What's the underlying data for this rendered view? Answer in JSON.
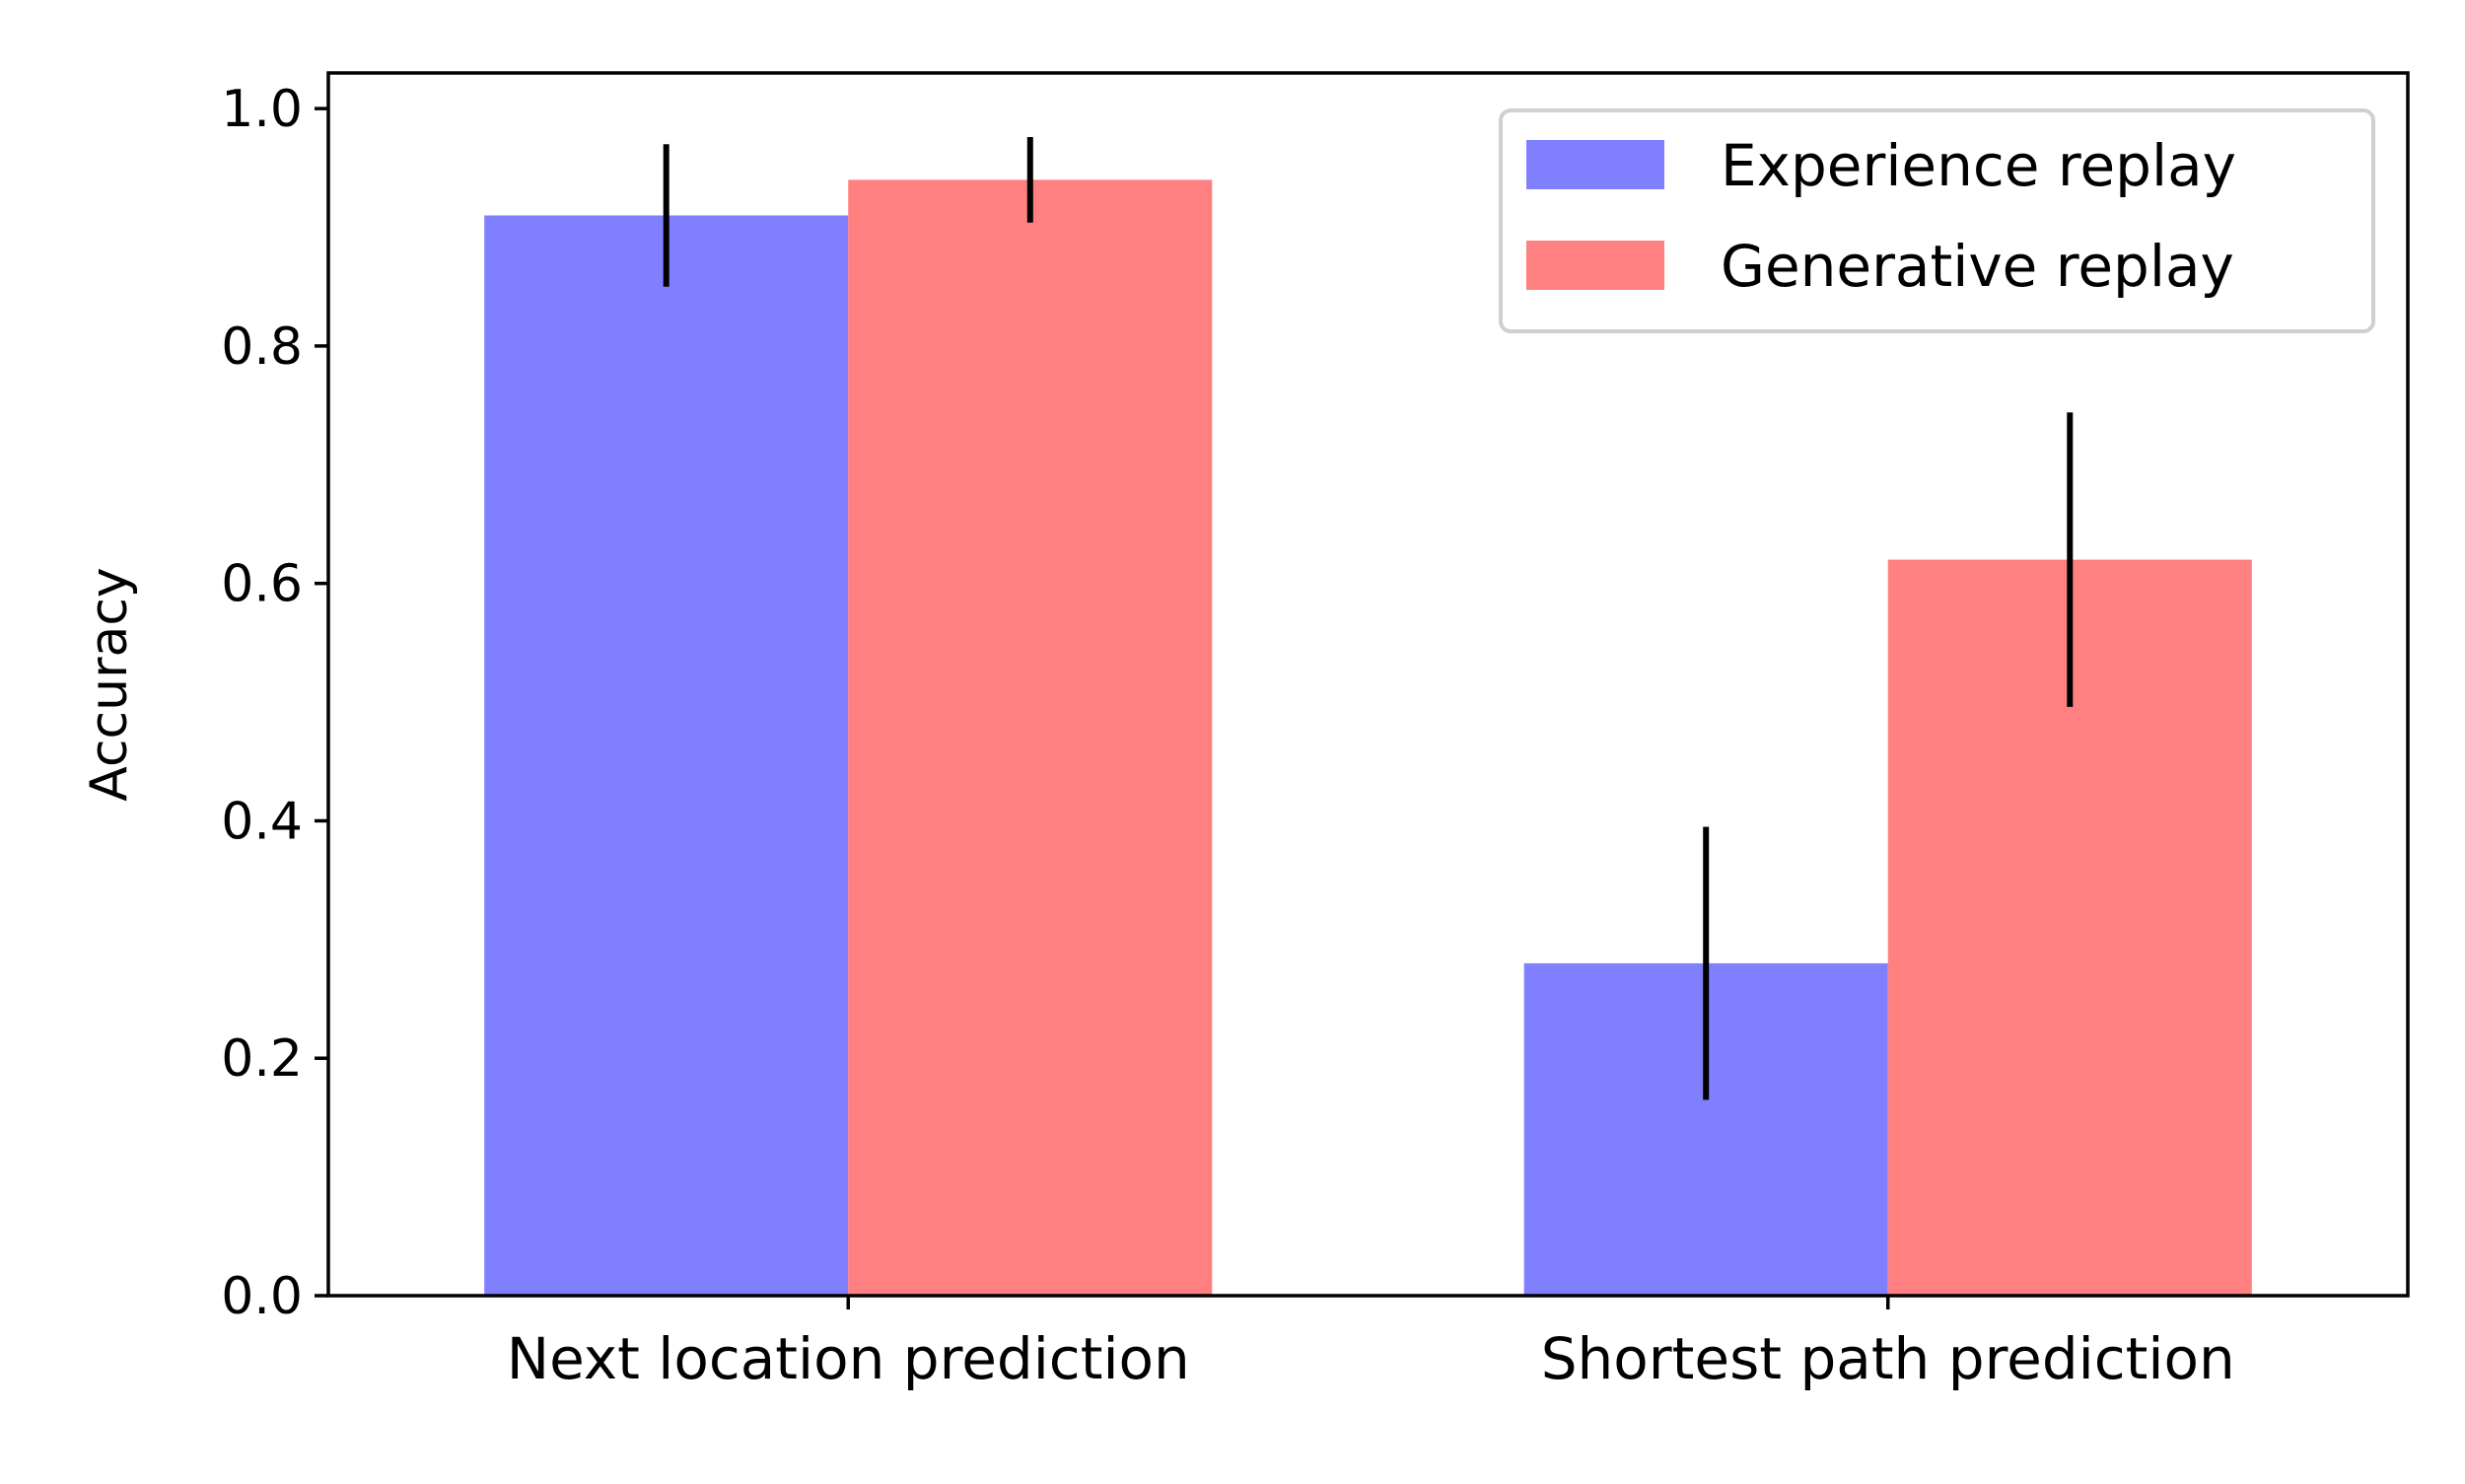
{
  "chart_data": {
    "type": "bar",
    "categories": [
      "Next location prediction",
      "Shortest path prediction"
    ],
    "series": [
      {
        "name": "Experience replay",
        "color": "#8080ff",
        "values": [
          0.91,
          0.28
        ],
        "error": [
          0.06,
          0.115
        ]
      },
      {
        "name": "Generative replay",
        "color": "#ff8080",
        "values": [
          0.94,
          0.62
        ],
        "error": [
          0.036,
          0.124
        ]
      }
    ],
    "xlabel": "",
    "ylabel": "Accuracy",
    "ylim": [
      0.0,
      1.03
    ],
    "yticks": [
      "0.0",
      "0.2",
      "0.4",
      "0.6",
      "0.8",
      "1.0"
    ],
    "grid": false,
    "legend_position": "top-right"
  }
}
